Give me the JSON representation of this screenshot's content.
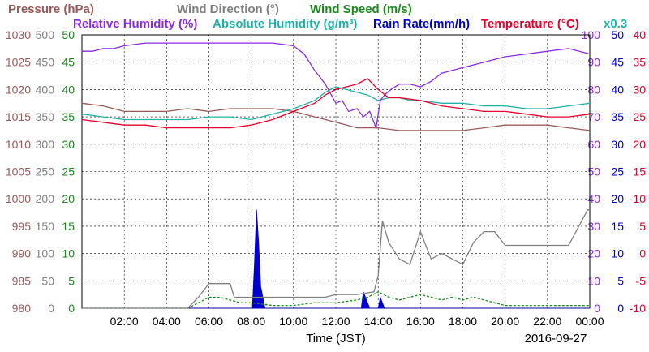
{
  "chart_data": {
    "type": "line",
    "date_label": "2016-09-27",
    "xlabel": "Time (JST)",
    "x_ticks": [
      "02:00",
      "04:00",
      "06:00",
      "08:00",
      "10:00",
      "12:00",
      "14:00",
      "16:00",
      "18:00",
      "20:00",
      "22:00",
      "00:00"
    ],
    "grid": true,
    "legend": [
      {
        "text": "Pressure (hPa)",
        "color": "#9b5a5a"
      },
      {
        "text": "Wind Direction (°)",
        "color": "#808080"
      },
      {
        "text": "Wind Speed (m/s)",
        "color": "#1a8a1a"
      },
      {
        "text": "Relative Humidity (%)",
        "color": "#8a2be2"
      },
      {
        "text": "Absolute Humidity (g/m³)",
        "color": "#20b2aa"
      },
      {
        "text": "Rain Rate(mm/h)",
        "color": "#0000cc"
      },
      {
        "text": "Temperature (°C)",
        "color": "#e8002a"
      },
      {
        "text": "x0.3",
        "color": "#20b2aa"
      }
    ],
    "axes": {
      "pressure": {
        "range": [
          980,
          1030
        ],
        "ticks": [
          "980",
          "985",
          "990",
          "995",
          "1000",
          "1005",
          "1010",
          "1015",
          "1020",
          "1025",
          "1030"
        ],
        "color": "#9b5a5a"
      },
      "wind_direction": {
        "range": [
          0,
          500
        ],
        "ticks": [
          "0",
          "50",
          "100",
          "150",
          "200",
          "250",
          "300",
          "350",
          "400",
          "450",
          "500"
        ],
        "color": "#808080"
      },
      "wind_speed": {
        "range": [
          0,
          50
        ],
        "ticks": [
          "0",
          "5",
          "10",
          "15",
          "20",
          "25",
          "30",
          "35",
          "40",
          "45",
          "50"
        ],
        "color": "#1a8a1a"
      },
      "relative_humidity": {
        "range": [
          0,
          100
        ],
        "ticks": [
          "0",
          "10",
          "20",
          "30",
          "40",
          "50",
          "60",
          "70",
          "80",
          "90",
          "100"
        ],
        "color": "#8a2be2"
      },
      "rain_rate": {
        "range": [
          0,
          50
        ],
        "ticks": [
          "0",
          "5",
          "10",
          "15",
          "20",
          "25",
          "30",
          "35",
          "40",
          "45",
          "50"
        ],
        "color": "#0000cc"
      },
      "temperature": {
        "range": [
          -10,
          40
        ],
        "ticks": [
          "-10",
          "-5",
          "0",
          "5",
          "10",
          "15",
          "20",
          "25",
          "30",
          "35",
          "40"
        ],
        "color": "#e8002a"
      }
    },
    "x_range_hours": [
      0,
      24
    ],
    "series": [
      {
        "name": "Relative Humidity (%)",
        "axis": "relative_humidity",
        "color": "#8a2be2",
        "x": [
          0,
          0.5,
          1,
          1.5,
          2,
          3,
          4,
          5,
          6,
          7,
          8,
          9,
          10,
          10.5,
          11,
          11.5,
          12,
          12.3,
          12.6,
          13,
          13.3,
          13.6,
          13.9,
          14.1,
          14.3,
          14.6,
          15,
          15.5,
          16,
          16.5,
          17,
          18,
          19,
          20,
          21,
          22,
          23,
          23.5,
          24
        ],
        "values": [
          94,
          94,
          95,
          95,
          96,
          97,
          97,
          97,
          97,
          97,
          97,
          97,
          96,
          93,
          87,
          82,
          75,
          76,
          72,
          73,
          70,
          72,
          66,
          76,
          78,
          80,
          82,
          82,
          81,
          83,
          86,
          88,
          90,
          92,
          93,
          94,
          95,
          94,
          93
        ]
      },
      {
        "name": "Absolute Humidity (g/m³)",
        "axis": "temperature",
        "color": "#20b2aa",
        "x": [
          0,
          1,
          2,
          3,
          4,
          5,
          6,
          7,
          8,
          9,
          10,
          11,
          11.5,
          12,
          12.5,
          13,
          13.5,
          14,
          14.5,
          15,
          15.5,
          16,
          17,
          18,
          19,
          20,
          21,
          22,
          23,
          24
        ],
        "values": [
          25.5,
          25,
          24.5,
          24.5,
          24.5,
          24.5,
          25,
          25,
          24.5,
          25.5,
          26.5,
          28,
          29.5,
          30.5,
          30,
          29.5,
          29,
          28,
          28.5,
          28.5,
          28,
          28,
          27.5,
          27.5,
          27,
          27,
          26.5,
          26.5,
          27,
          27.5
        ]
      },
      {
        "name": "Temperature (°C)",
        "axis": "temperature",
        "color": "#e8002a",
        "x": [
          0,
          1,
          2,
          3,
          4,
          5,
          6,
          7,
          8,
          9,
          10,
          11,
          11.5,
          12,
          12.5,
          13,
          13.5,
          14,
          14.5,
          15,
          16,
          17,
          18,
          19,
          20,
          21,
          22,
          23,
          24
        ],
        "values": [
          24.5,
          24,
          23.5,
          23.5,
          23,
          23,
          23,
          23,
          23.5,
          24.5,
          26,
          27.5,
          29,
          30,
          30.5,
          31,
          32,
          30,
          28.5,
          28.5,
          28,
          27,
          26.5,
          26,
          26,
          25.5,
          25,
          25,
          25.5
        ]
      },
      {
        "name": "Pressure (hPa)",
        "axis": "pressure",
        "color": "#9b5a5a",
        "x": [
          0,
          1,
          2,
          3,
          4,
          5,
          6,
          7,
          8,
          9,
          10,
          11,
          12,
          13,
          14,
          15,
          16,
          17,
          18,
          19,
          20,
          21,
          22,
          23,
          24
        ],
        "values": [
          1017.5,
          1017,
          1016,
          1016,
          1016,
          1016.5,
          1016,
          1016.5,
          1016.5,
          1016.5,
          1016,
          1015,
          1014,
          1013,
          1013,
          1012.5,
          1012.5,
          1012.5,
          1012.5,
          1013,
          1013.5,
          1013.5,
          1013.5,
          1013,
          1012.5
        ]
      },
      {
        "name": "Wind Direction (°)",
        "axis": "wind_direction",
        "color": "#808080",
        "x": [
          0,
          1,
          2,
          3,
          4,
          5,
          5.5,
          6,
          6.2,
          6.5,
          7,
          7.2,
          8,
          9,
          10,
          11,
          11.5,
          12,
          13,
          13.8,
          14,
          14.2,
          14.5,
          15,
          15.5,
          16,
          16.5,
          17,
          17.5,
          18,
          18.5,
          19,
          19.5,
          20,
          21,
          22,
          23,
          23.9,
          24
        ],
        "values": [
          0,
          0,
          0,
          0,
          0,
          0,
          20,
          45,
          45,
          45,
          45,
          20,
          20,
          20,
          20,
          20,
          20,
          25,
          25,
          30,
          60,
          160,
          120,
          90,
          80,
          140,
          90,
          100,
          90,
          80,
          120,
          140,
          140,
          115,
          115,
          115,
          115,
          180,
          180
        ]
      },
      {
        "name": "Wind Speed (m/s)",
        "axis": "wind_speed",
        "color": "#1a8a1a",
        "x": [
          0,
          1,
          2,
          3,
          4,
          5,
          5.5,
          6,
          6.5,
          7,
          7.5,
          8,
          9,
          10,
          11,
          12,
          13,
          13.5,
          14,
          14.5,
          15,
          15.5,
          16,
          16.5,
          17,
          17.5,
          18,
          18.5,
          19,
          19.5,
          20,
          21,
          22,
          23,
          24
        ],
        "values": [
          0,
          0,
          0,
          0,
          0,
          0,
          1,
          2,
          2,
          1.5,
          1,
          1,
          0.5,
          0.5,
          1,
          1,
          1.5,
          2,
          3,
          2,
          1.5,
          2,
          2.5,
          2,
          1.5,
          2,
          1.5,
          2,
          1.5,
          1,
          0.5,
          0.5,
          0.5,
          0.5,
          0.5
        ]
      },
      {
        "name": "Rain Rate(mm/h)",
        "axis": "rain_rate",
        "color": "#0000cc",
        "style": "area",
        "x": [
          0,
          7.9,
          8.05,
          8.15,
          8.25,
          8.35,
          8.45,
          8.55,
          8.65,
          8.8,
          13.2,
          13.3,
          13.4,
          13.5,
          13.6,
          14.0,
          14.1,
          14.2,
          14.3,
          24
        ],
        "values": [
          0,
          0,
          0,
          8,
          18,
          12,
          4,
          2,
          0,
          0,
          0,
          3,
          2,
          1,
          0,
          0,
          2,
          1,
          0,
          0
        ]
      }
    ]
  }
}
